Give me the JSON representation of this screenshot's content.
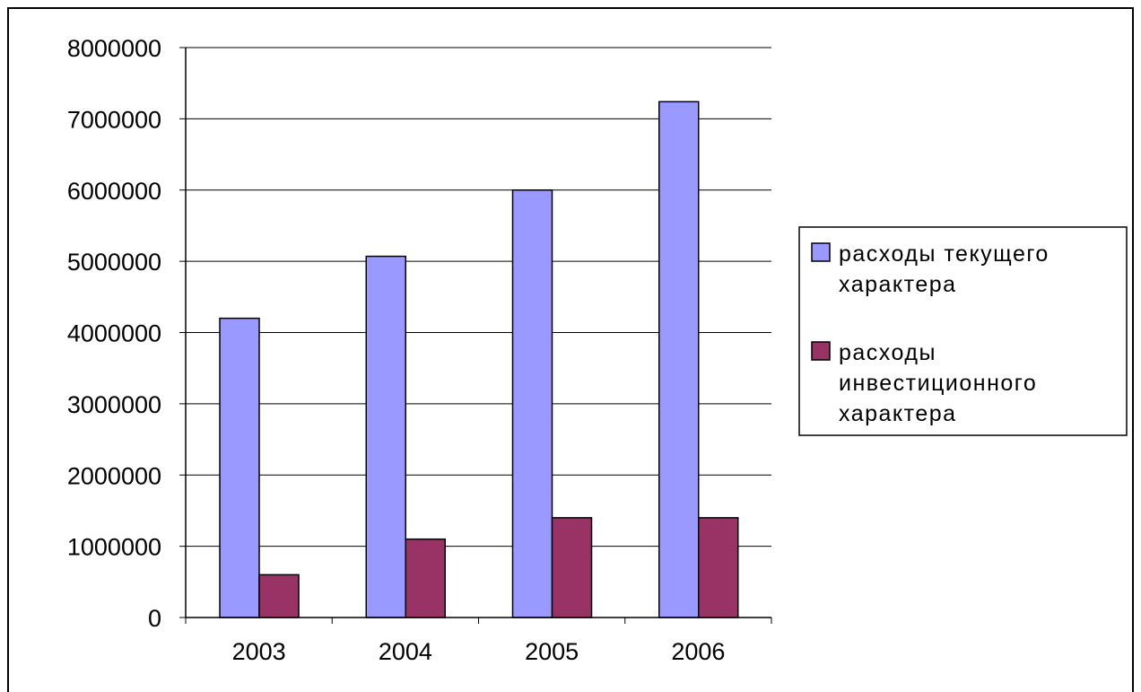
{
  "chart_data": {
    "type": "bar",
    "title": "",
    "xlabel": "",
    "ylabel": "",
    "categories": [
      "2003",
      "2004",
      "2005",
      "2006"
    ],
    "ylim": [
      0,
      8000000
    ],
    "yticks": [
      "0",
      "1000000",
      "2000000",
      "3000000",
      "4000000",
      "5000000",
      "6000000",
      "7000000",
      "8000000"
    ],
    "grid": true,
    "legend_position": "right",
    "series": [
      {
        "name": "расходы текущего характера",
        "legend_lines": [
          "расходы текущего",
          "характера"
        ],
        "color": "#9999ff",
        "values": [
          4200000,
          5070000,
          6000000,
          7240000
        ]
      },
      {
        "name": "расходы инвестиционного характера",
        "legend_lines": [
          "расходы",
          "инвестиционного",
          "характера"
        ],
        "color": "#993366",
        "values": [
          600000,
          1100000,
          1400000,
          1400000
        ]
      }
    ]
  }
}
